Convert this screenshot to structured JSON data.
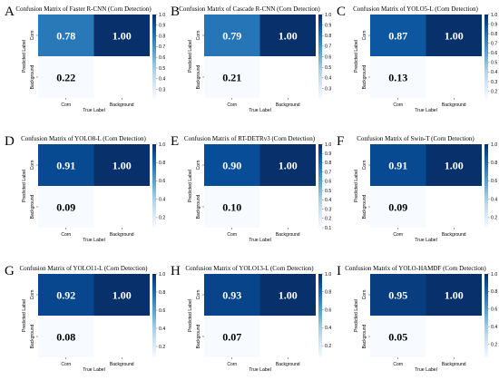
{
  "chart_data": [
    {
      "type": "heatmap",
      "panel": "A",
      "title": "Confusion Matrix of Faster R-CNN (Corn Detection)",
      "xlabel": "True Label",
      "ylabel": "Predicted Label",
      "x_categories": [
        "Corn",
        "Background"
      ],
      "y_categories": [
        "Corn",
        "Background"
      ],
      "cells": [
        {
          "row": "Corn",
          "col": "Corn",
          "value": 0.78,
          "label": "0.78"
        },
        {
          "row": "Corn",
          "col": "Background",
          "value": 1.0,
          "label": "1.00"
        },
        {
          "row": "Background",
          "col": "Corn",
          "value": 0.22,
          "label": "0.22"
        }
      ],
      "colorbar": {
        "range": [
          0.22,
          1.0
        ],
        "ticks": [
          "0.3",
          "0.4",
          "0.5",
          "0.6",
          "0.7",
          "0.8",
          "0.9",
          "1.0"
        ]
      }
    },
    {
      "type": "heatmap",
      "panel": "B",
      "title": "Confusion Matrix of Cascade R-CNN (Corn Detection)",
      "xlabel": "True Label",
      "ylabel": "Predicted Label",
      "x_categories": [
        "Corn",
        "Background"
      ],
      "y_categories": [
        "Corn",
        "Background"
      ],
      "cells": [
        {
          "row": "Corn",
          "col": "Corn",
          "value": 0.79,
          "label": "0.79"
        },
        {
          "row": "Corn",
          "col": "Background",
          "value": 1.0,
          "label": "1.00"
        },
        {
          "row": "Background",
          "col": "Corn",
          "value": 0.21,
          "label": "0.21"
        }
      ],
      "colorbar": {
        "range": [
          0.21,
          1.0
        ],
        "ticks": [
          "0.3",
          "0.4",
          "0.5",
          "0.6",
          "0.7",
          "0.8",
          "0.9",
          "1.0"
        ]
      }
    },
    {
      "type": "heatmap",
      "panel": "C",
      "title": "Confusion Matrix of YOLO5-L (Corn Detection)",
      "xlabel": "True Label",
      "ylabel": "Predicted Label",
      "x_categories": [
        "Corn",
        "Background"
      ],
      "y_categories": [
        "Corn",
        "Background"
      ],
      "cells": [
        {
          "row": "Corn",
          "col": "Corn",
          "value": 0.87,
          "label": "0.87"
        },
        {
          "row": "Corn",
          "col": "Background",
          "value": 1.0,
          "label": "1.00"
        },
        {
          "row": "Background",
          "col": "Corn",
          "value": 0.13,
          "label": "0.13"
        }
      ],
      "colorbar": {
        "range": [
          0.13,
          1.0
        ],
        "ticks": [
          "0.2",
          "0.3",
          "0.4",
          "0.5",
          "0.6",
          "0.7",
          "0.8",
          "0.9",
          "1.0"
        ]
      }
    },
    {
      "type": "heatmap",
      "panel": "D",
      "title": "Confusion Matrix of YOLO8-L (Corn Detection)",
      "xlabel": "True Label",
      "ylabel": "Predicted Label",
      "x_categories": [
        "Corn",
        "Background"
      ],
      "y_categories": [
        "Corn",
        "Background"
      ],
      "cells": [
        {
          "row": "Corn",
          "col": "Corn",
          "value": 0.91,
          "label": "0.91"
        },
        {
          "row": "Corn",
          "col": "Background",
          "value": 1.0,
          "label": "1.00"
        },
        {
          "row": "Background",
          "col": "Corn",
          "value": 0.09,
          "label": "0.09"
        }
      ],
      "colorbar": {
        "range": [
          0.09,
          1.0
        ],
        "ticks": [
          "0.2",
          "0.4",
          "0.6",
          "0.8",
          "1.0"
        ]
      }
    },
    {
      "type": "heatmap",
      "panel": "E",
      "title": "Confusion Matrix of RT-DETRv3 (Corn Detection)",
      "xlabel": "True Label",
      "ylabel": "Predicted Label",
      "x_categories": [
        "Corn",
        "Background"
      ],
      "y_categories": [
        "Corn",
        "Background"
      ],
      "cells": [
        {
          "row": "Corn",
          "col": "Corn",
          "value": 0.9,
          "label": "0.90"
        },
        {
          "row": "Corn",
          "col": "Background",
          "value": 1.0,
          "label": "1.00"
        },
        {
          "row": "Background",
          "col": "Corn",
          "value": 0.1,
          "label": "0.10"
        }
      ],
      "colorbar": {
        "range": [
          0.1,
          1.0
        ],
        "ticks": [
          "0.1",
          "0.2",
          "0.3",
          "0.4",
          "0.5",
          "0.6",
          "0.7",
          "0.8",
          "0.9",
          "1.0"
        ]
      }
    },
    {
      "type": "heatmap",
      "panel": "F",
      "title": "Confusion Matrix of Swin-T (Corn Detection)",
      "xlabel": "True Label",
      "ylabel": "Predicted Label",
      "x_categories": [
        "Corn",
        "Background"
      ],
      "y_categories": [
        "Corn",
        "Background"
      ],
      "cells": [
        {
          "row": "Corn",
          "col": "Corn",
          "value": 0.91,
          "label": "0.91"
        },
        {
          "row": "Corn",
          "col": "Background",
          "value": 1.0,
          "label": "1.00"
        },
        {
          "row": "Background",
          "col": "Corn",
          "value": 0.09,
          "label": "0.09"
        }
      ],
      "colorbar": {
        "range": [
          0.09,
          1.0
        ],
        "ticks": [
          "0.2",
          "0.4",
          "0.6",
          "0.8",
          "1.0"
        ]
      }
    },
    {
      "type": "heatmap",
      "panel": "G",
      "title": "Confusion Matrix of YOLO11-L (Corn Detection)",
      "xlabel": "True Label",
      "ylabel": "Predicted Label",
      "x_categories": [
        "Corn",
        "Background"
      ],
      "y_categories": [
        "Corn",
        "Background"
      ],
      "cells": [
        {
          "row": "Corn",
          "col": "Corn",
          "value": 0.92,
          "label": "0.92"
        },
        {
          "row": "Corn",
          "col": "Background",
          "value": 1.0,
          "label": "1.00"
        },
        {
          "row": "Background",
          "col": "Corn",
          "value": 0.08,
          "label": "0.08"
        }
      ],
      "colorbar": {
        "range": [
          0.08,
          1.0
        ],
        "ticks": [
          "0.2",
          "0.4",
          "0.6",
          "0.8",
          "1.0"
        ]
      }
    },
    {
      "type": "heatmap",
      "panel": "H",
      "title": "Confusion Matrix of YOLO13-L (Corn Detection)",
      "xlabel": "True Label",
      "ylabel": "Predicted Label",
      "x_categories": [
        "Corn",
        "Background"
      ],
      "y_categories": [
        "Corn",
        "Background"
      ],
      "cells": [
        {
          "row": "Corn",
          "col": "Corn",
          "value": 0.93,
          "label": "0.93"
        },
        {
          "row": "Corn",
          "col": "Background",
          "value": 1.0,
          "label": "1.00"
        },
        {
          "row": "Background",
          "col": "Corn",
          "value": 0.07,
          "label": "0.07"
        }
      ],
      "colorbar": {
        "range": [
          0.07,
          1.0
        ],
        "ticks": [
          "0.2",
          "0.4",
          "0.6",
          "0.8",
          "1.0"
        ]
      }
    },
    {
      "type": "heatmap",
      "panel": "I",
      "title": "Confusion Matrix of YOLO-HAMDF (Corn Detection)",
      "xlabel": "True Label",
      "ylabel": "Predicted Label",
      "x_categories": [
        "Corn",
        "Background"
      ],
      "y_categories": [
        "Corn",
        "Background"
      ],
      "cells": [
        {
          "row": "Corn",
          "col": "Corn",
          "value": 0.95,
          "label": "0.95"
        },
        {
          "row": "Corn",
          "col": "Background",
          "value": 1.0,
          "label": "1.00"
        },
        {
          "row": "Background",
          "col": "Corn",
          "value": 0.05,
          "label": "0.05"
        }
      ],
      "colorbar": {
        "range": [
          0.05,
          1.0
        ],
        "ticks": [
          "0.2",
          "0.4",
          "0.6",
          "0.8",
          "1.0"
        ]
      }
    }
  ],
  "colors": {
    "cmap_low": "#f7fbff",
    "cmap_high": "#08306b",
    "text_dark": "#000000",
    "text_light": "#ffffff"
  }
}
